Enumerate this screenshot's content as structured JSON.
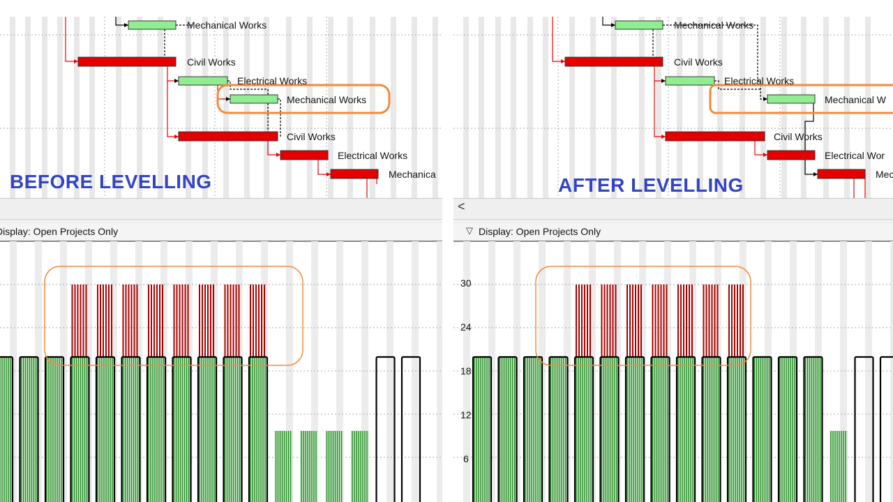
{
  "left": {
    "title": "BEFORE LEVELLING",
    "display_filter": "Display: Open Projects Only",
    "gantt_labels": [
      "Mechanical Works",
      "Civil Works",
      "Electrical Works",
      "Mechanical Works",
      "Civil Works",
      "Electrical Works",
      "Mechanica"
    ]
  },
  "right": {
    "title": "AFTER LEVELLING",
    "display_filter": "Display: Open Projects Only",
    "scroll_left": "<",
    "gantt_labels": [
      "Mechanical Works",
      "Civil Works",
      "Electrical Works",
      "Mechanical W",
      "Civil Works",
      "Electrical Wor",
      "Mec"
    ],
    "y_ticks": [
      "30",
      "24",
      "18",
      "12",
      "6"
    ]
  },
  "colors": {
    "civil": "#e50000",
    "electrical_mechanical": "#90ee90",
    "overload": "#aa0000",
    "histogram_bar": "#1f8a1f",
    "highlight": "#f5893a",
    "title": "#3344c4"
  }
}
